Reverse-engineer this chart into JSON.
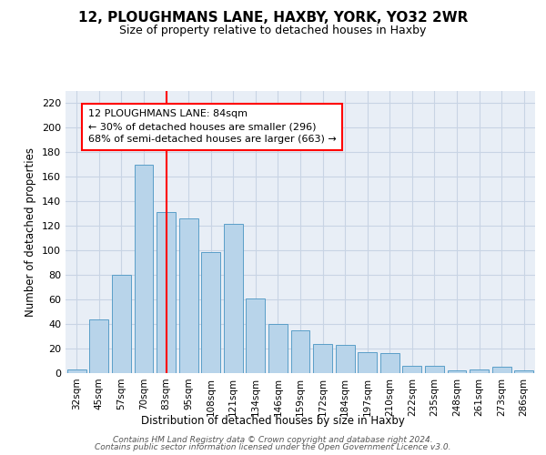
{
  "title": "12, PLOUGHMANS LANE, HAXBY, YORK, YO32 2WR",
  "subtitle": "Size of property relative to detached houses in Haxby",
  "xlabel": "Distribution of detached houses by size in Haxby",
  "ylabel": "Number of detached properties",
  "categories": [
    "32sqm",
    "45sqm",
    "57sqm",
    "70sqm",
    "83sqm",
    "95sqm",
    "108sqm",
    "121sqm",
    "134sqm",
    "146sqm",
    "159sqm",
    "172sqm",
    "184sqm",
    "197sqm",
    "210sqm",
    "222sqm",
    "235sqm",
    "248sqm",
    "261sqm",
    "273sqm",
    "286sqm"
  ],
  "values": [
    3,
    44,
    80,
    170,
    131,
    126,
    99,
    122,
    61,
    40,
    35,
    24,
    23,
    17,
    16,
    6,
    6,
    2,
    3,
    5,
    2
  ],
  "bar_color": "#b8d4ea",
  "bar_edge_color": "#5a9ec8",
  "grid_color": "#c8d4e4",
  "background_color": "#e8eef6",
  "red_line_x": 4,
  "annotation_text": "12 PLOUGHMANS LANE: 84sqm\n← 30% of detached houses are smaller (296)\n68% of semi-detached houses are larger (663) →",
  "annotation_box_color": "white",
  "annotation_box_edge_color": "red",
  "footer_line1": "Contains HM Land Registry data © Crown copyright and database right 2024.",
  "footer_line2": "Contains public sector information licensed under the Open Government Licence v3.0.",
  "ylim": [
    0,
    230
  ],
  "yticks": [
    0,
    20,
    40,
    60,
    80,
    100,
    120,
    140,
    160,
    180,
    200,
    220
  ]
}
